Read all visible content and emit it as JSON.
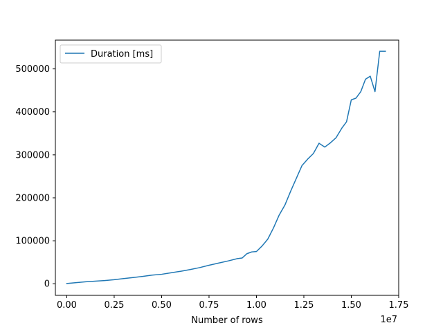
{
  "chart_data": {
    "type": "line",
    "title": "",
    "xlabel": "Number of rows",
    "ylabel": "",
    "x_offset_label": "1e7",
    "xlim": [
      -600000,
      17500000
    ],
    "ylim": [
      -27000,
      567000
    ],
    "x_ticks": [
      0,
      2500000,
      5000000,
      7500000,
      10000000,
      12500000,
      15000000,
      17500000
    ],
    "x_tick_labels": [
      "0.00",
      "0.25",
      "0.50",
      "0.75",
      "1.00",
      "1.25",
      "1.50",
      "1.75"
    ],
    "y_ticks": [
      0,
      100000,
      200000,
      300000,
      400000,
      500000
    ],
    "y_tick_labels": [
      "0",
      "100000",
      "200000",
      "300000",
      "400000",
      "500000"
    ],
    "grid": false,
    "legend": "top-left",
    "series": [
      {
        "name": "Duration [ms]",
        "color": "#1f77b4",
        "x": [
          0,
          500000,
          1000000,
          1500000,
          2000000,
          2500000,
          3000000,
          3500000,
          4000000,
          4500000,
          5000000,
          5500000,
          6000000,
          6500000,
          7000000,
          7500000,
          8000000,
          8500000,
          9000000,
          9250000,
          9500000,
          9750000,
          10000000,
          10300000,
          10600000,
          10900000,
          11200000,
          11500000,
          11800000,
          12100000,
          12400000,
          12700000,
          13000000,
          13300000,
          13600000,
          13900000,
          14200000,
          14500000,
          14750000,
          15000000,
          15250000,
          15500000,
          15750000,
          16000000,
          16250000,
          16500000,
          16800000
        ],
        "y": [
          500,
          2500,
          4500,
          6000,
          7500,
          9500,
          12000,
          14500,
          17000,
          20000,
          22000,
          25500,
          29000,
          33000,
          37500,
          43000,
          48000,
          53000,
          58500,
          60000,
          70000,
          74000,
          75000,
          88000,
          104000,
          130000,
          160000,
          183000,
          215000,
          245000,
          275000,
          290000,
          303000,
          327000,
          318000,
          328000,
          340000,
          362000,
          377000,
          428000,
          432000,
          447000,
          476000,
          483000,
          447000,
          541000,
          541000
        ]
      }
    ]
  }
}
